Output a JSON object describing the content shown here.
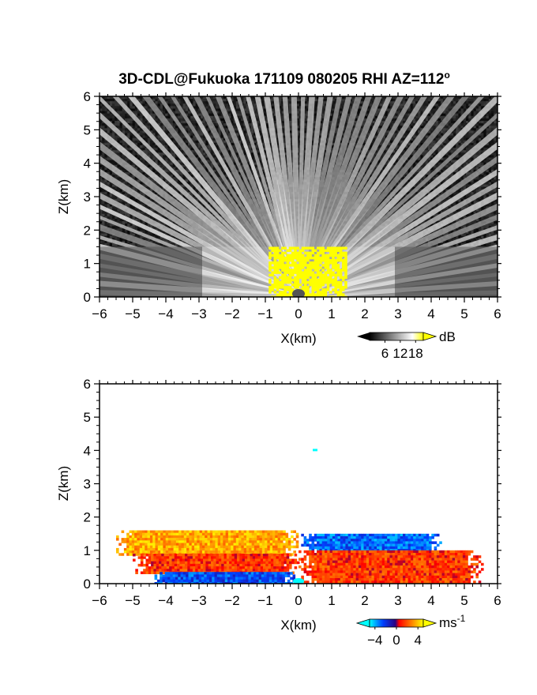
{
  "figure": {
    "title": "3D-CDL@Fukuoka 171109 080205 RHI AZ=112",
    "title_sup": "o"
  },
  "chart_data": [
    {
      "type": "heatmap",
      "name": "intensity",
      "xlabel": "X(km)",
      "ylabel": "Z(km)",
      "xlim": [
        -6,
        6
      ],
      "ylim": [
        0,
        6
      ],
      "xticks": [
        "-6",
        "-5",
        "-4",
        "-3",
        "-2",
        "-1",
        "0",
        "1",
        "2",
        "3",
        "4",
        "5",
        "6"
      ],
      "yticks": [
        "0",
        "1",
        "2",
        "3",
        "4",
        "5",
        "6"
      ],
      "colorbar": {
        "unit": "dB",
        "ticks": [
          "6",
          "12",
          "18"
        ],
        "range": [
          0,
          21
        ],
        "colors": [
          "#000000",
          "#ffffff",
          "#ffff00"
        ]
      },
      "echo_top_km": 1.5,
      "saturated_region": {
        "x": [
          -0.9,
          1.4
        ],
        "z": [
          0,
          1.5
        ],
        "color": "#ffff00"
      },
      "background_noise": "dark gray speckle above 1.5 km",
      "grid": false
    },
    {
      "type": "heatmap",
      "name": "velocity",
      "xlabel": "X(km)",
      "ylabel": "Z(km)",
      "xlim": [
        -6,
        6
      ],
      "ylim": [
        0,
        6
      ],
      "xticks": [
        "-6",
        "-5",
        "-4",
        "-3",
        "-2",
        "-1",
        "0",
        "1",
        "2",
        "3",
        "4",
        "5",
        "6"
      ],
      "yticks": [
        "0",
        "1",
        "2",
        "3",
        "4",
        "5",
        "6"
      ],
      "colorbar": {
        "unit": "ms",
        "unit_sup": "-1",
        "ticks": [
          "-4",
          "0",
          "4"
        ],
        "range": [
          -5,
          5
        ],
        "colors": [
          "#00ffff",
          "#0040ff",
          "#2a0080",
          "#ff0000",
          "#ff8000",
          "#ffff00"
        ]
      },
      "regions": [
        {
          "x": [
            -5.5,
            0
          ],
          "z": [
            0.9,
            1.6
          ],
          "velocity": 3.5
        },
        {
          "x": [
            -5,
            0
          ],
          "z": [
            0.35,
            0.9
          ],
          "velocity": 1.5
        },
        {
          "x": [
            -4.5,
            0
          ],
          "z": [
            0,
            0.35
          ],
          "velocity": -2.5
        },
        {
          "x": [
            0,
            4.3
          ],
          "z": [
            1.0,
            1.5
          ],
          "velocity": -3.0
        },
        {
          "x": [
            0,
            5.5
          ],
          "z": [
            0,
            1.0
          ],
          "velocity": 1.5
        }
      ],
      "isolated_point": {
        "x": 0.5,
        "z": 4.0,
        "velocity": -5
      },
      "grid": false
    }
  ]
}
